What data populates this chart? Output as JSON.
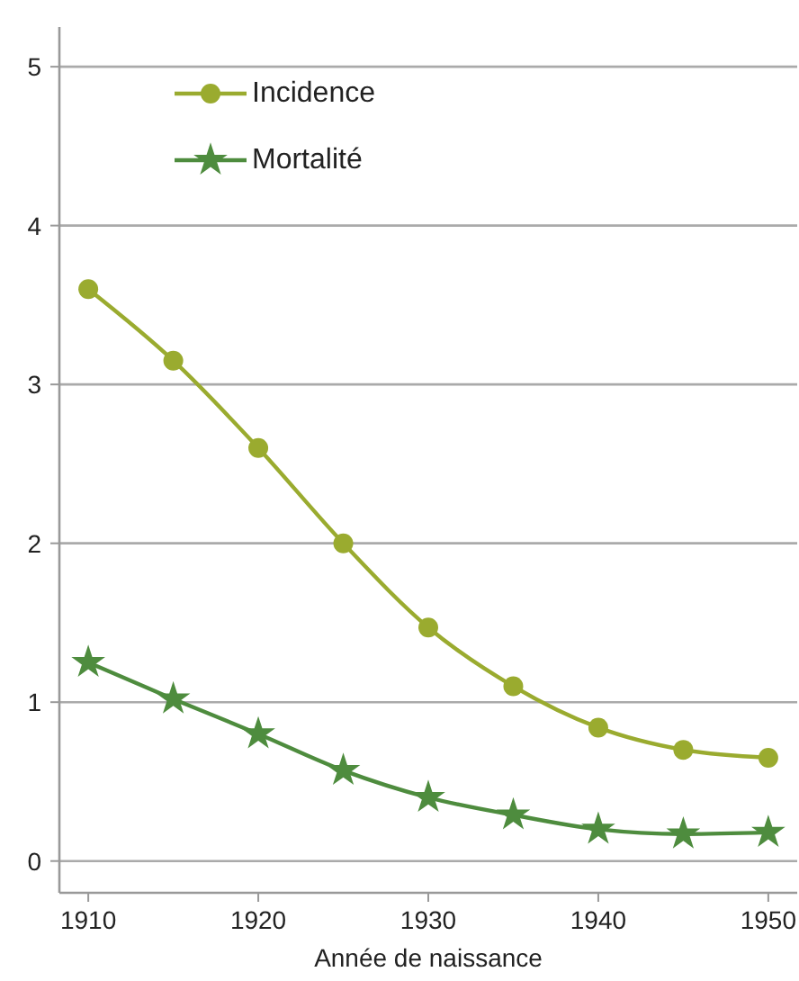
{
  "chart_data": {
    "type": "line",
    "xlabel": "Année de naissance",
    "x": [
      1910,
      1915,
      1920,
      1925,
      1930,
      1935,
      1940,
      1945,
      1950
    ],
    "series": [
      {
        "name": "Incidence",
        "color": "#9aab2f",
        "marker": "circle",
        "values": [
          3.6,
          3.15,
          2.6,
          2.0,
          1.47,
          1.1,
          0.84,
          0.7,
          0.65
        ]
      },
      {
        "name": "Mortalité",
        "color": "#4e8c3e",
        "marker": "star",
        "values": [
          1.25,
          1.02,
          0.8,
          0.57,
          0.4,
          0.29,
          0.2,
          0.17,
          0.18
        ]
      }
    ],
    "xlim": [
      1908.3,
      1951.7
    ],
    "xticks": [
      1910,
      1920,
      1930,
      1940,
      1950
    ],
    "ylim": [
      -0.2,
      5.25
    ],
    "yticks": [
      0,
      1,
      2,
      3,
      4,
      5
    ],
    "grid": "y",
    "legend": "top left",
    "line_style": "solid"
  }
}
